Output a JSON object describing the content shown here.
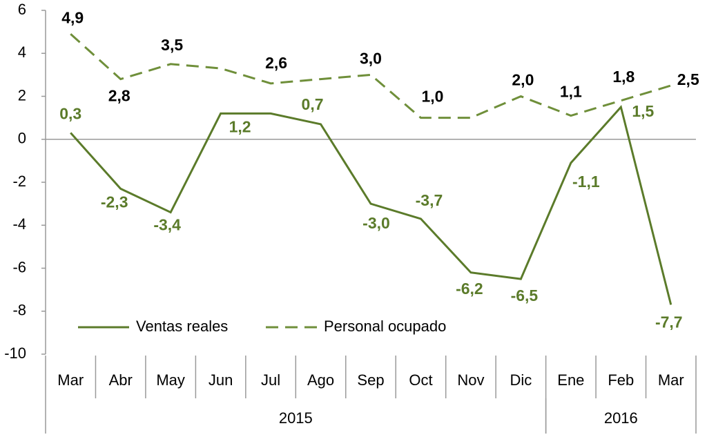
{
  "chart_data": {
    "type": "line",
    "categories": [
      "Mar",
      "Abr",
      "May",
      "Jun",
      "Jul",
      "Ago",
      "Sep",
      "Oct",
      "Nov",
      "Dic",
      "Ene",
      "Feb",
      "Mar"
    ],
    "category_groups": [
      {
        "label": "2015",
        "count": 10
      },
      {
        "label": "2016",
        "count": 3
      }
    ],
    "series": [
      {
        "name": "Ventas reales",
        "color": "#5b7b2a",
        "dash": false,
        "values": [
          0.3,
          -2.3,
          -3.4,
          1.2,
          1.2,
          0.7,
          -3.0,
          -3.7,
          -6.2,
          -6.5,
          -1.1,
          1.5,
          -7.7
        ],
        "value_labels": [
          "0,3",
          "-2,3",
          "-3,4",
          "1,2",
          null,
          "0,7",
          "-3,0",
          "-3,7",
          "-6,2",
          "-6,5",
          "-1,1",
          "1,5",
          "-7,7"
        ],
        "label_color": "#5b7b2a"
      },
      {
        "name": "Personal ocupado",
        "color": "#6f8f3a",
        "dash": true,
        "values": [
          4.9,
          2.8,
          3.5,
          3.3,
          2.6,
          2.8,
          3.0,
          1.0,
          1.0,
          2.0,
          1.1,
          1.8,
          2.5
        ],
        "value_labels": [
          "4,9",
          "2,8",
          "3,5",
          null,
          "2,6",
          null,
          "3,0",
          "1,0",
          null,
          "2,0",
          "1,1",
          "1,8",
          "2,5"
        ],
        "label_color": "#000000"
      }
    ],
    "ylim": [
      -10,
      6
    ],
    "yticks": [
      -10,
      -8,
      -6,
      -4,
      -2,
      0,
      2,
      4,
      6
    ],
    "legend": "lower left",
    "grid": false
  }
}
